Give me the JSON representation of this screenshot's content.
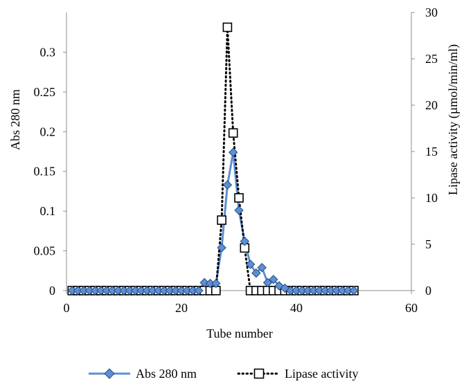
{
  "chart_data": {
    "type": "line",
    "xlabel": "Tube number",
    "ylabel_left": "Abs 280 nm",
    "ylabel_right": "Lipase activity (µmol/min/ml)",
    "xlim": [
      0,
      60
    ],
    "ylim_left": [
      0,
      0.35
    ],
    "ylim_right": [
      0,
      30
    ],
    "x_ticks": [
      0,
      20,
      40,
      60
    ],
    "y_ticks_left": [
      0,
      0.05,
      0.1,
      0.15,
      0.2,
      0.25,
      0.3
    ],
    "y_tick_labels_left": [
      "0",
      "0.05",
      "0.1",
      "0.15",
      "0.2",
      "0.25",
      "0.3"
    ],
    "y_ticks_right": [
      0,
      5,
      10,
      15,
      20,
      25,
      30
    ],
    "grid": false,
    "legend_position": "bottom-center",
    "series": [
      {
        "name": "Abs 280 nm",
        "axis": "left",
        "color": "#5b8fd6",
        "marker": "diamond",
        "line_style": "solid",
        "x": [
          1,
          2,
          3,
          4,
          5,
          6,
          7,
          8,
          9,
          10,
          11,
          12,
          13,
          14,
          15,
          16,
          17,
          18,
          19,
          20,
          21,
          22,
          23,
          24,
          25,
          26,
          27,
          28,
          29,
          30,
          31,
          32,
          33,
          34,
          35,
          36,
          37,
          38,
          39,
          40,
          41,
          42,
          43,
          44,
          45,
          46,
          47,
          48,
          49,
          50
        ],
        "values": [
          0,
          0,
          0,
          0,
          0,
          0,
          0,
          0,
          0,
          0,
          0,
          0,
          0,
          0,
          0,
          0,
          0,
          0,
          0,
          0,
          0,
          0,
          0,
          0.01,
          0.009,
          0.009,
          0.054,
          0.133,
          0.174,
          0.101,
          0.062,
          0.033,
          0.022,
          0.029,
          0.01,
          0.014,
          0.006,
          0.003,
          0,
          0,
          0,
          0,
          0,
          0,
          0,
          0,
          0,
          0,
          0,
          0
        ]
      },
      {
        "name": "Lipase activity",
        "axis": "right",
        "color": "#000000",
        "marker": "square",
        "line_style": "dotted",
        "x": [
          1,
          2,
          3,
          4,
          5,
          6,
          7,
          8,
          9,
          10,
          11,
          12,
          13,
          14,
          15,
          16,
          17,
          18,
          19,
          20,
          21,
          22,
          23,
          24,
          25,
          26,
          27,
          28,
          29,
          30,
          31,
          32,
          33,
          34,
          35,
          36,
          37,
          38,
          39,
          40,
          41,
          42,
          43,
          44,
          45,
          46,
          47,
          48,
          49,
          50
        ],
        "values": [
          0,
          0,
          0,
          0,
          0,
          0,
          0,
          0,
          0,
          0,
          0,
          0,
          0,
          0,
          0,
          0,
          0,
          0,
          0,
          0,
          0,
          0,
          0,
          0,
          0,
          0,
          7.6,
          28.4,
          17,
          10,
          4.6,
          0,
          0,
          0,
          0,
          0,
          0,
          0,
          0,
          0,
          0,
          0,
          0,
          0,
          0,
          0,
          0,
          0,
          0,
          0
        ]
      }
    ]
  }
}
